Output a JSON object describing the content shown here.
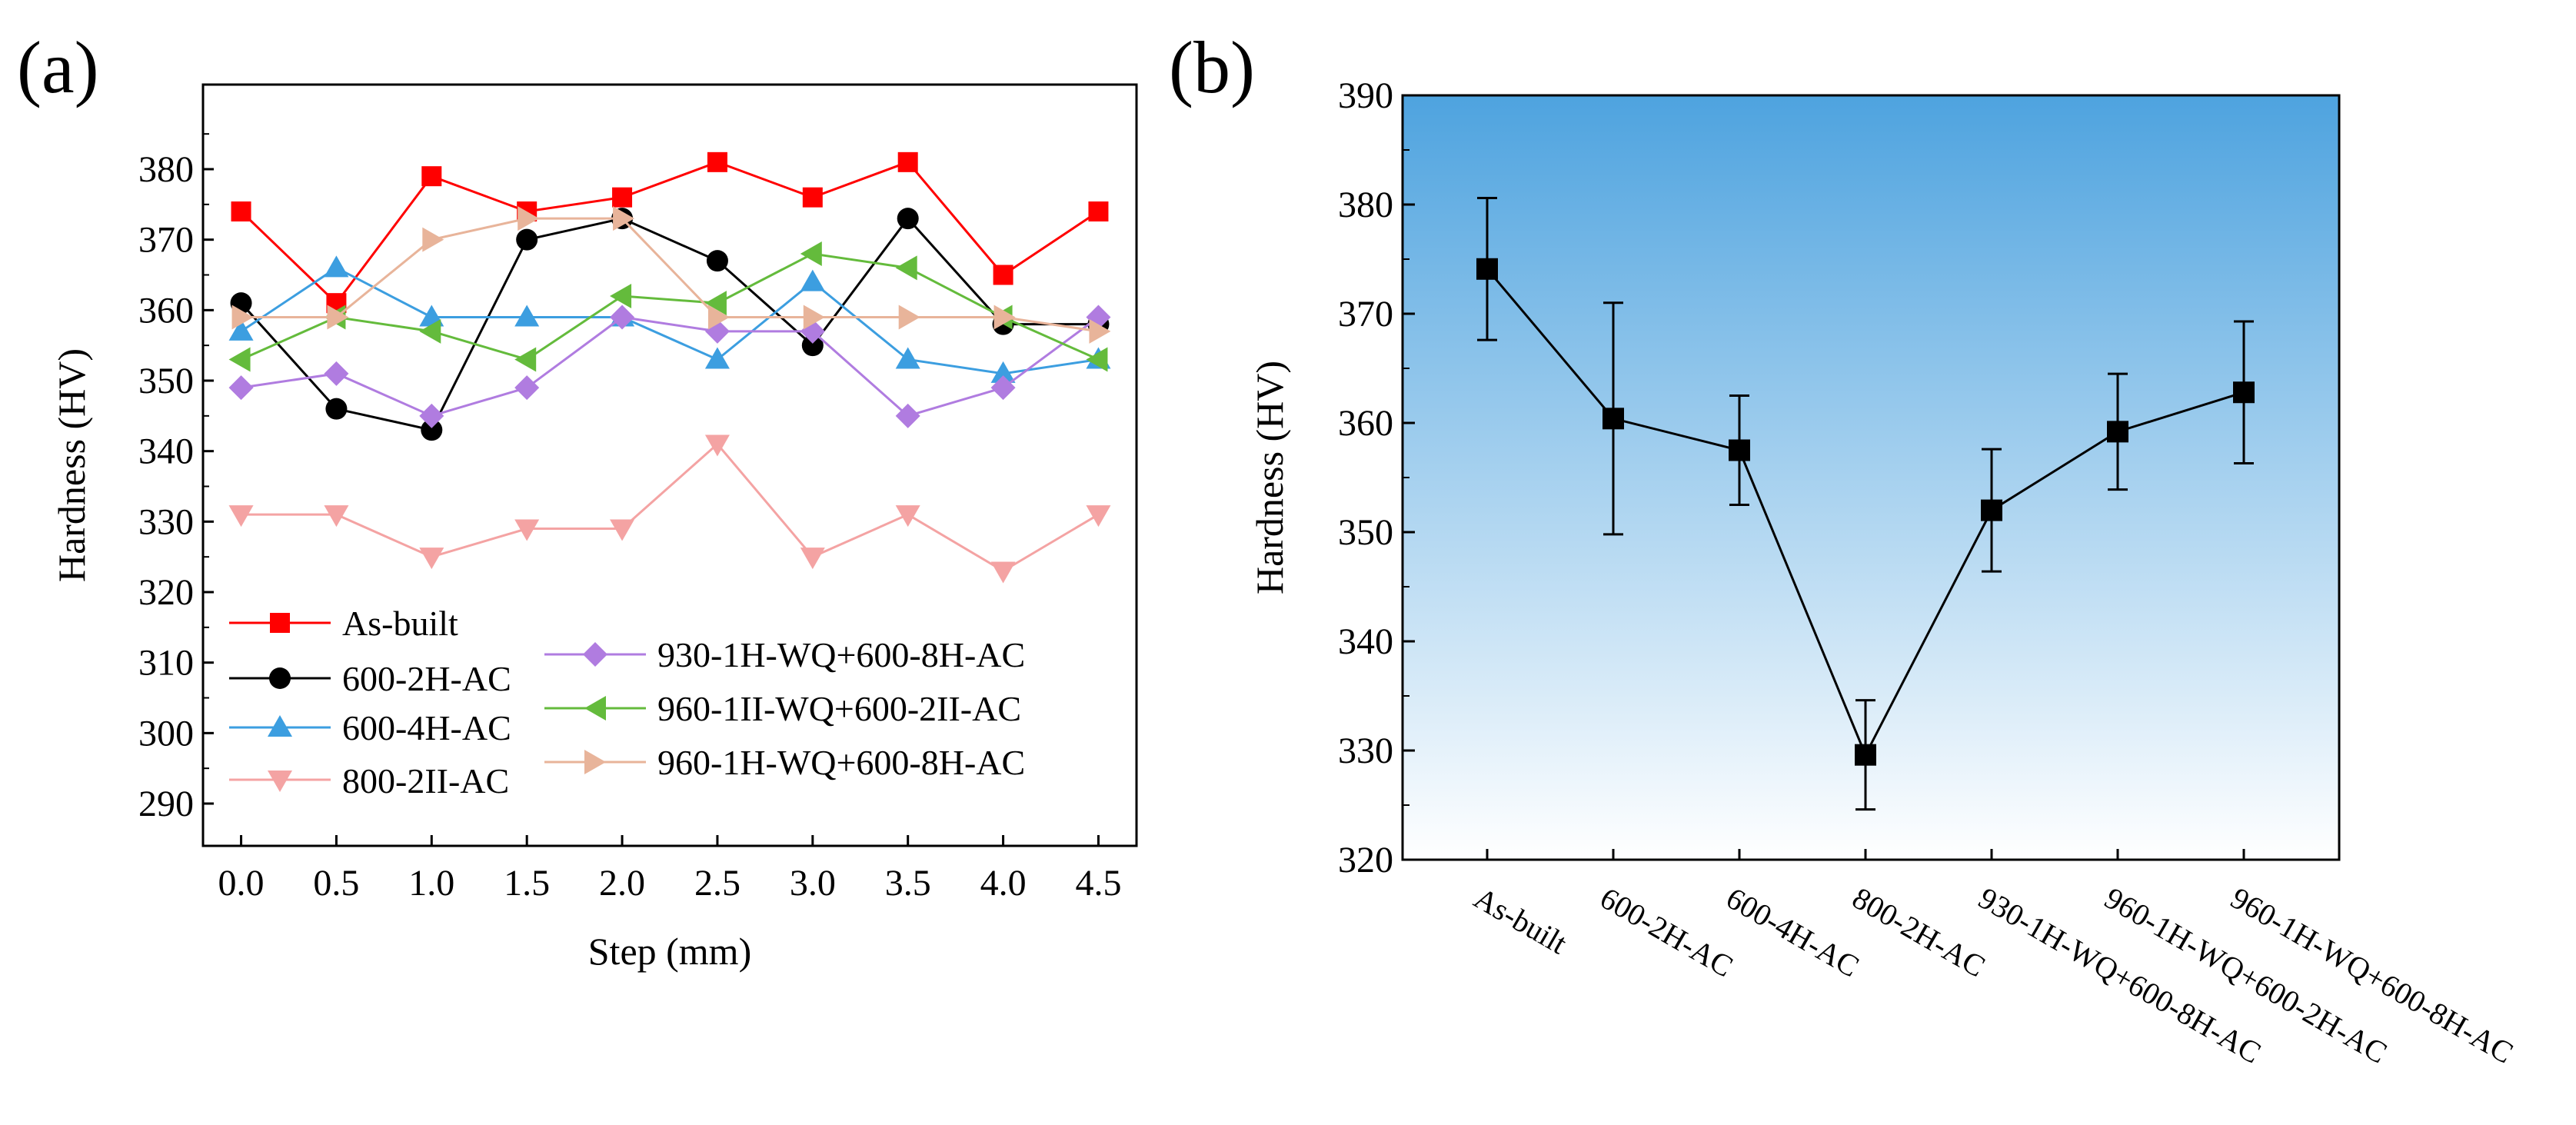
{
  "chart_data": [
    {
      "panel_label": "(a)",
      "type": "line",
      "xlabel": "Step (mm)",
      "ylabel": "Hardness (HV)",
      "xlim": [
        -0.2,
        4.7
      ],
      "ylim": [
        284,
        392
      ],
      "xticks": [
        "0.0",
        "0.5",
        "1.0",
        "1.5",
        "2.0",
        "2.5",
        "3.0",
        "3.5",
        "4.0",
        "4.5"
      ],
      "yticks": [
        "290",
        "300",
        "310",
        "320",
        "330",
        "340",
        "350",
        "360",
        "370",
        "380"
      ],
      "x": [
        0.0,
        0.5,
        1.0,
        1.5,
        2.0,
        2.5,
        3.0,
        3.5,
        4.0,
        4.5
      ],
      "legend": "lower-left, two columns",
      "series": [
        {
          "name": "As-built",
          "color": "#ff0000",
          "marker": "square",
          "values": [
            374,
            361,
            379,
            374,
            376,
            381,
            376,
            381,
            365,
            374
          ]
        },
        {
          "name": "600-2H-AC",
          "color": "#000000",
          "marker": "circle",
          "values": [
            361,
            346,
            343,
            370,
            373,
            367,
            355,
            373,
            358,
            358
          ]
        },
        {
          "name": "600-4H-AC",
          "color": "#3c9ee0",
          "marker": "triangle-up",
          "values": [
            357,
            366,
            359,
            359,
            359,
            353,
            364,
            353,
            351,
            353
          ]
        },
        {
          "name": "800-2H-AC",
          "color": "#f4a3a3",
          "marker": "triangle-down",
          "values": [
            331,
            331,
            325,
            329,
            329,
            341,
            325,
            331,
            323,
            331
          ]
        },
        {
          "name": "930-1H-WQ+600-8H-AC",
          "color": "#b07ce0",
          "marker": "diamond",
          "values": [
            349,
            351,
            345,
            349,
            359,
            357,
            357,
            345,
            349,
            359
          ]
        },
        {
          "name": "960-1H-WQ+600-2H-AC",
          "color": "#64bb3c",
          "marker": "triangle-left",
          "values": [
            353,
            359,
            357,
            353,
            362,
            361,
            368,
            366,
            359,
            353
          ]
        },
        {
          "name": "960-1H-WQ+600-8H-AC",
          "color": "#e8b49a",
          "marker": "triangle-right",
          "values": [
            359,
            359,
            370,
            373,
            373,
            359,
            359,
            359,
            359,
            357
          ]
        }
      ],
      "legend_labels": {
        "as_built": "As-built",
        "s600_2h": "600-2H-AC",
        "s600_4h": "600-4H-AC",
        "s800_2h": "800-2II-AC",
        "s930": "930-1H-WQ+600-8H-AC",
        "s960_2h": "960-1II-WQ+600-2II-AC",
        "s960_8h": "960-1H-WQ+600-8H-AC"
      }
    },
    {
      "panel_label": "(b)",
      "type": "line",
      "xlabel": "",
      "ylabel": "Hardness (HV)",
      "ylim": [
        320,
        390
      ],
      "yticks": [
        "320",
        "330",
        "340",
        "350",
        "360",
        "370",
        "380",
        "390"
      ],
      "categories": [
        "As-built",
        "600-2H-AC",
        "600-4H-AC",
        "800-2H-AC",
        "930-1H-WQ+600-8H-AC",
        "960-1H-WQ+600-2H-AC",
        "960-1H-WQ+600-8H-AC"
      ],
      "values": [
        374.1,
        360.4,
        357.5,
        329.6,
        352.0,
        359.2,
        362.8
      ],
      "errors": [
        6.5,
        10.6,
        5.0,
        5.0,
        5.6,
        5.3,
        6.5
      ],
      "background": {
        "top": "#4ea3df",
        "bottom": "#ffffff"
      }
    }
  ]
}
